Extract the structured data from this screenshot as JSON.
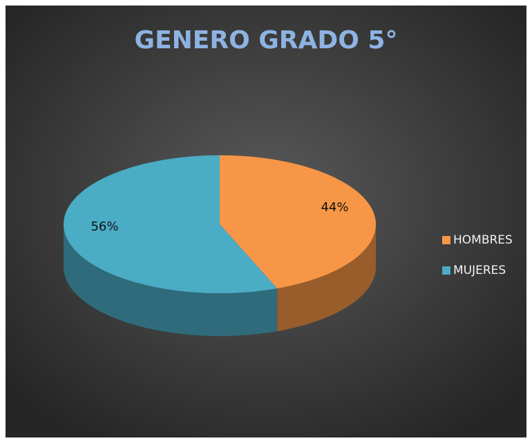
{
  "chart_data": {
    "type": "pie",
    "title": "GENERO GRADO 5°",
    "categories": [
      "HOMBRES",
      "MUJERES"
    ],
    "values": [
      44,
      56
    ],
    "value_labels": [
      "44%",
      "56%"
    ],
    "colors": [
      "#f79646",
      "#4bacc6"
    ],
    "legend": "right"
  }
}
